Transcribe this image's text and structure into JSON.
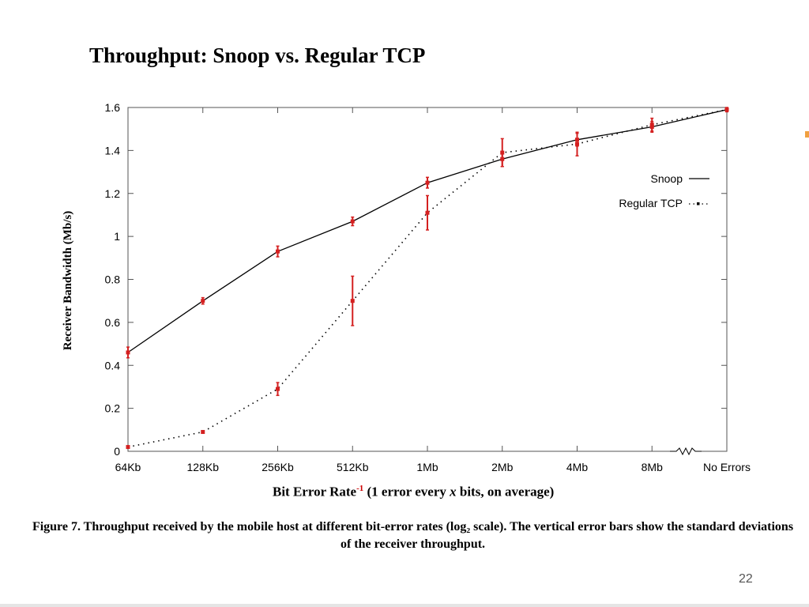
{
  "slide": {
    "title": "Throughput: Snoop vs. Regular TCP",
    "page_number": "22"
  },
  "figure": {
    "xlabel_prefix": "Bit Error Rate",
    "xlabel_superscript": "-1",
    "xlabel_mid": "(1 error every ",
    "xlabel_var": "x",
    "xlabel_suffix": " bits, on average)",
    "caption": "Figure 7. Throughput received by the mobile host at different bit-error rates (log₂ scale). The vertical error bars show the standard deviations of the receiver throughput."
  },
  "chart_data": {
    "type": "line",
    "ylabel": "Receiver Bandwidth (Mb/s)",
    "ylim": [
      0,
      1.6
    ],
    "yticks": [
      "0",
      "0.2",
      "0.4",
      "0.6",
      "0.8",
      "1",
      "1.2",
      "1.4",
      "1.6"
    ],
    "categories": [
      "64Kb",
      "128Kb",
      "256Kb",
      "512Kb",
      "1Mb",
      "2Mb",
      "4Mb",
      "8Mb",
      "No Errors"
    ],
    "x_axis_break_before": "No Errors",
    "grid": false,
    "legend_position": "right",
    "series": [
      {
        "name": "Snoop",
        "line_style": "solid",
        "values": [
          0.46,
          0.7,
          0.93,
          1.07,
          1.25,
          1.36,
          1.45,
          1.51,
          1.59
        ],
        "errors": [
          0.025,
          0.015,
          0.025,
          0.02,
          0.025,
          0.035,
          0.03,
          0.025,
          0.01
        ]
      },
      {
        "name": "Regular TCP",
        "line_style": "dotted",
        "values": [
          0.02,
          0.09,
          0.29,
          0.7,
          1.11,
          1.39,
          1.43,
          1.52,
          1.59
        ],
        "errors": [
          0.0,
          0.0,
          0.03,
          0.115,
          0.08,
          0.065,
          0.055,
          0.03,
          0.0
        ]
      }
    ],
    "colors": {
      "line": "#000000",
      "error_bar": "#d42020",
      "marker": "#d42020"
    }
  }
}
